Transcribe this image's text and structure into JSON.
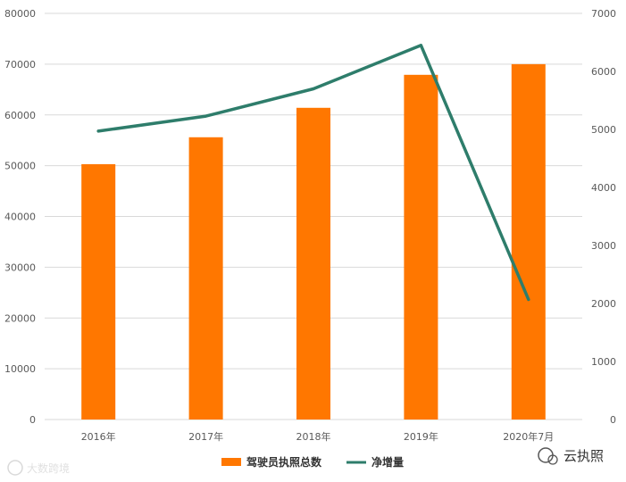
{
  "chart_data": {
    "type": "bar",
    "categories": [
      "2016年",
      "2017年",
      "2018年",
      "2019年",
      "2020年7月"
    ],
    "series": [
      {
        "name": "驾驶员执照总数",
        "type": "bar",
        "axis": "left",
        "values": [
          50300,
          55600,
          61400,
          67900,
          70000
        ]
      },
      {
        "name": "净增量",
        "type": "line",
        "axis": "right",
        "values": [
          4970,
          5230,
          5700,
          6450,
          2070
        ]
      }
    ],
    "y_left": {
      "min": 0,
      "max": 80000,
      "step": 10000,
      "ticks": [
        "0",
        "10000",
        "20000",
        "30000",
        "40000",
        "50000",
        "60000",
        "70000",
        "80000"
      ]
    },
    "y_right": {
      "min": 0,
      "max": 7000,
      "step": 1000,
      "ticks": [
        "0",
        "1000",
        "2000",
        "3000",
        "4000",
        "5000",
        "6000",
        "7000"
      ]
    },
    "grid": true,
    "legend_position": "bottom"
  },
  "colors": {
    "bar": "#FF7700",
    "line": "#2E7D6B",
    "grid": "#D9D9D9"
  },
  "watermarks": {
    "left": "大数跨境",
    "right": "云执照"
  }
}
